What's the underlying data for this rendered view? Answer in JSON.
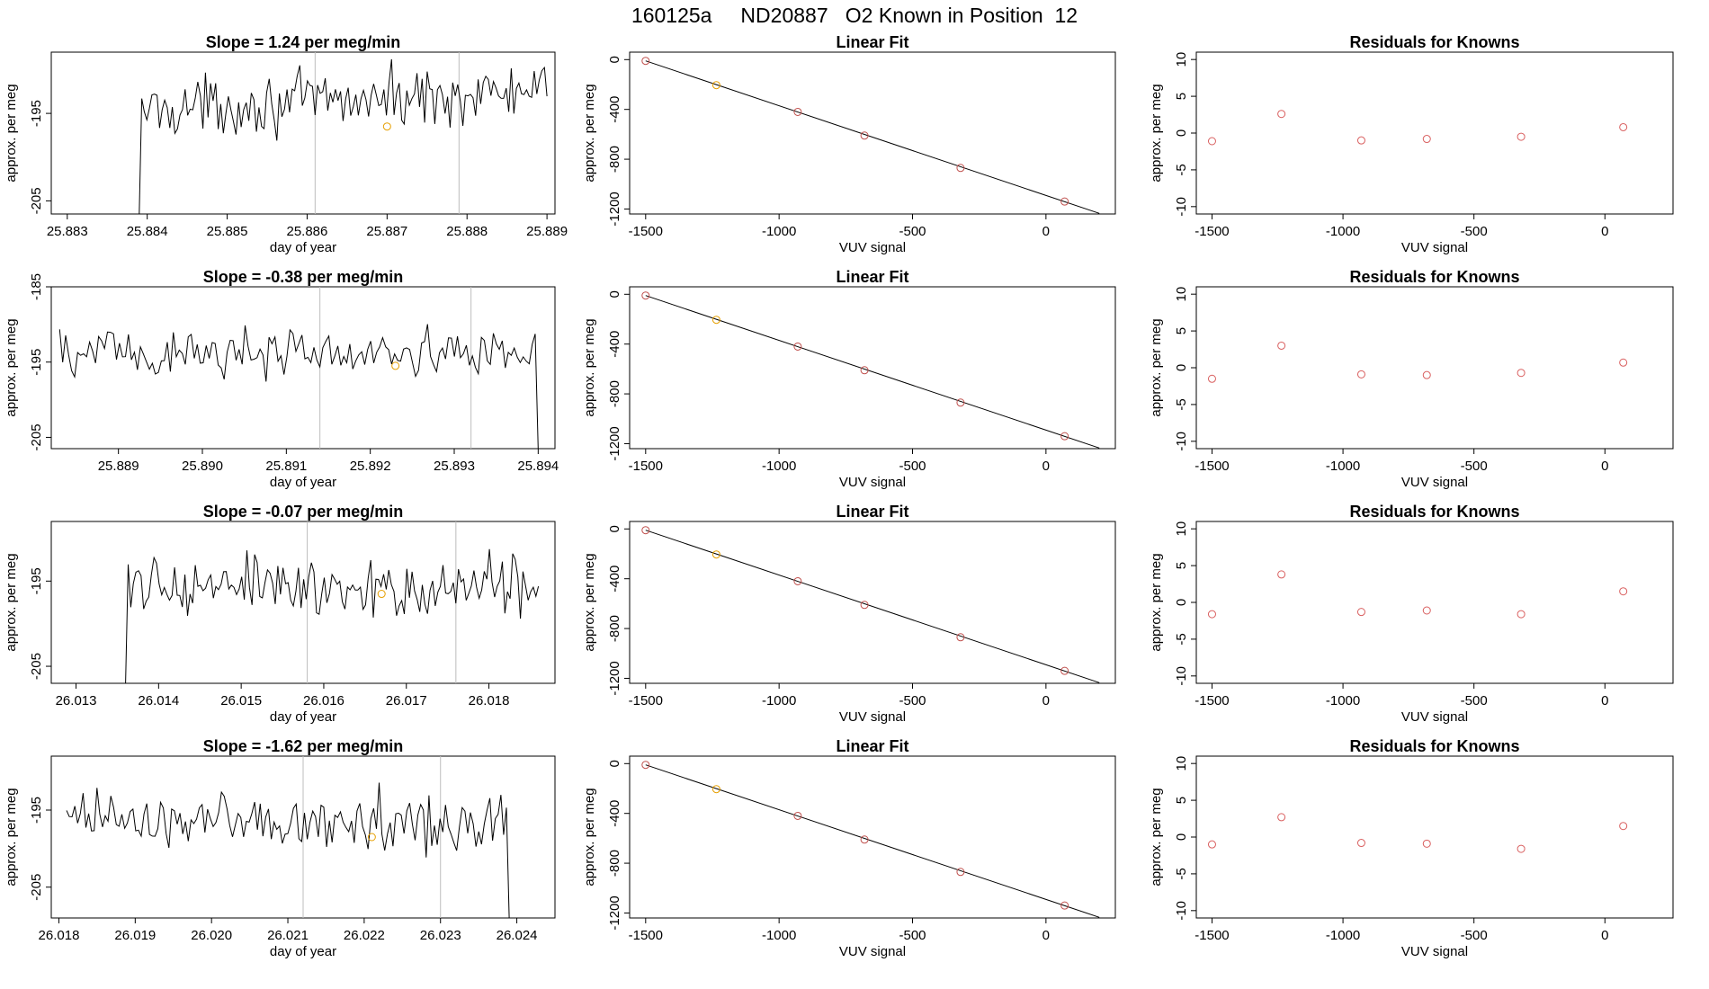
{
  "page_title": "160125a     ND20887   O2 Known in Position  12",
  "colors": {
    "line": "#000000",
    "residual_point": "#d95f5f",
    "fit_point": "#c0504d",
    "highlight_point": "#e69f00",
    "vertical_marker": "#bdbdbd",
    "axis": "#000000"
  },
  "chart_data": [
    {
      "type": "line",
      "title": "Slope =  1.24  per meg/min",
      "xlabel": "day of year",
      "ylabel": "approx. per meg",
      "xlim": [
        25.8828,
        25.8891
      ],
      "ylim": [
        -206.5,
        -188
      ],
      "xticks": [
        25.883,
        25.884,
        25.885,
        25.886,
        25.887,
        25.888,
        25.889
      ],
      "xtick_labels": [
        "25.883",
        "25.884",
        "25.885",
        "25.886",
        "25.887",
        "25.888",
        "25.889"
      ],
      "yticks": [
        -205,
        -195
      ],
      "ytick_labels": [
        "-205",
        "-195"
      ],
      "x_start": 25.8839,
      "x_end": 25.889,
      "baseline": -193.5,
      "trend": 2.0,
      "amplitude": 2.3,
      "start_value": -206.5,
      "vertical_lines": [
        25.8861,
        25.8879
      ],
      "highlight_point": {
        "x": 25.887,
        "y": -196.5
      }
    },
    {
      "type": "scatter-with-fit",
      "title": "Linear Fit",
      "xlabel": "VUV signal",
      "ylabel": "approx. per meg",
      "xlim": [
        -1560,
        260
      ],
      "ylim": [
        -1240,
        60
      ],
      "xticks": [
        -1500,
        -1000,
        -500,
        0
      ],
      "xtick_labels": [
        "-1500",
        "-1000",
        "-500",
        "0"
      ],
      "yticks": [
        0,
        -400,
        -800,
        -1200
      ],
      "ytick_labels": [
        "0",
        "-400",
        "-800",
        "-1200"
      ],
      "points": [
        {
          "x": -1500,
          "y": -10
        },
        {
          "x": -1235,
          "y": -205
        },
        {
          "x": -930,
          "y": -420
        },
        {
          "x": -680,
          "y": -610
        },
        {
          "x": -320,
          "y": -870
        },
        {
          "x": 70,
          "y": -1140
        }
      ],
      "highlight_index": 1,
      "fit_line": {
        "x": [
          -1500,
          200
        ],
        "y": [
          -10,
          -1235
        ]
      }
    },
    {
      "type": "scatter",
      "title": "Residuals for Knowns",
      "xlabel": "VUV signal",
      "ylabel": "approx. per meg",
      "xlim": [
        -1560,
        260
      ],
      "ylim": [
        -11,
        11
      ],
      "xticks": [
        -1500,
        -1000,
        -500,
        0
      ],
      "xtick_labels": [
        "-1500",
        "-1000",
        "-500",
        "0"
      ],
      "yticks": [
        -10,
        -5,
        0,
        5,
        10
      ],
      "ytick_labels": [
        "-10",
        "-5",
        "0",
        "5",
        "10"
      ],
      "points": [
        {
          "x": -1500,
          "y": -1.1
        },
        {
          "x": -1235,
          "y": 2.6
        },
        {
          "x": -930,
          "y": -1.0
        },
        {
          "x": -680,
          "y": -0.8
        },
        {
          "x": -320,
          "y": -0.5
        },
        {
          "x": 70,
          "y": 0.8
        }
      ]
    },
    {
      "type": "line",
      "title": "Slope =  -0.38  per meg/min",
      "xlabel": "day of year",
      "ylabel": "approx. per meg",
      "xlim": [
        25.8882,
        25.8942
      ],
      "ylim": [
        -206.5,
        -185
      ],
      "xticks": [
        25.889,
        25.89,
        25.891,
        25.892,
        25.893,
        25.894
      ],
      "xtick_labels": [
        "25.889",
        "25.890",
        "25.891",
        "25.892",
        "25.893",
        "25.894"
      ],
      "yticks": [
        -205,
        -195,
        -185
      ],
      "ytick_labels": [
        "-205",
        "-195",
        "-185"
      ],
      "x_start": 25.8883,
      "x_end": 25.894,
      "baseline": -193.8,
      "trend": -0.4,
      "amplitude": 2.5,
      "end_value": -206.5,
      "vertical_lines": [
        25.8914,
        25.8932
      ],
      "highlight_point": {
        "x": 25.8923,
        "y": -195.5
      }
    },
    {
      "type": "scatter-with-fit",
      "title": "Linear Fit",
      "xlabel": "VUV signal",
      "ylabel": "approx. per meg",
      "xlim": [
        -1560,
        260
      ],
      "ylim": [
        -1240,
        60
      ],
      "xticks": [
        -1500,
        -1000,
        -500,
        0
      ],
      "xtick_labels": [
        "-1500",
        "-1000",
        "-500",
        "0"
      ],
      "yticks": [
        0,
        -400,
        -800,
        -1200
      ],
      "ytick_labels": [
        "0",
        "-400",
        "-800",
        "-1200"
      ],
      "points": [
        {
          "x": -1500,
          "y": -10
        },
        {
          "x": -1235,
          "y": -205
        },
        {
          "x": -930,
          "y": -420
        },
        {
          "x": -680,
          "y": -610
        },
        {
          "x": -320,
          "y": -870
        },
        {
          "x": 70,
          "y": -1140
        }
      ],
      "highlight_index": 1,
      "fit_line": {
        "x": [
          -1500,
          200
        ],
        "y": [
          -10,
          -1235
        ]
      }
    },
    {
      "type": "scatter",
      "title": "Residuals for Knowns",
      "xlabel": "VUV signal",
      "ylabel": "approx. per meg",
      "xlim": [
        -1560,
        260
      ],
      "ylim": [
        -11,
        11
      ],
      "xticks": [
        -1500,
        -1000,
        -500,
        0
      ],
      "xtick_labels": [
        "-1500",
        "-1000",
        "-500",
        "0"
      ],
      "yticks": [
        -10,
        -5,
        0,
        5,
        10
      ],
      "ytick_labels": [
        "-10",
        "-5",
        "0",
        "5",
        "10"
      ],
      "points": [
        {
          "x": -1500,
          "y": -1.5
        },
        {
          "x": -1235,
          "y": 3.0
        },
        {
          "x": -930,
          "y": -0.9
        },
        {
          "x": -680,
          "y": -1.0
        },
        {
          "x": -320,
          "y": -0.7
        },
        {
          "x": 70,
          "y": 0.7
        }
      ]
    },
    {
      "type": "line",
      "title": "Slope =  -0.07  per meg/min",
      "xlabel": "day of year",
      "ylabel": "approx. per meg",
      "xlim": [
        26.0127,
        26.0188
      ],
      "ylim": [
        -207,
        -188
      ],
      "xticks": [
        26.013,
        26.014,
        26.015,
        26.016,
        26.017,
        26.018
      ],
      "xtick_labels": [
        "26.013",
        "26.014",
        "26.015",
        "26.016",
        "26.017",
        "26.018"
      ],
      "yticks": [
        -205,
        -195
      ],
      "ytick_labels": [
        "-205",
        "-195"
      ],
      "x_start": 26.0136,
      "x_end": 26.0186,
      "baseline": -195.8,
      "trend": 0.0,
      "amplitude": 2.4,
      "start_value": -207,
      "vertical_lines": [
        26.0158,
        26.0176
      ],
      "highlight_point": {
        "x": 26.0167,
        "y": -196.5
      }
    },
    {
      "type": "scatter-with-fit",
      "title": "Linear Fit",
      "xlabel": "VUV signal",
      "ylabel": "approx. per meg",
      "xlim": [
        -1560,
        260
      ],
      "ylim": [
        -1240,
        60
      ],
      "xticks": [
        -1500,
        -1000,
        -500,
        0
      ],
      "xtick_labels": [
        "-1500",
        "-1000",
        "-500",
        "0"
      ],
      "yticks": [
        0,
        -400,
        -800,
        -1200
      ],
      "ytick_labels": [
        "0",
        "-400",
        "-800",
        "-1200"
      ],
      "points": [
        {
          "x": -1500,
          "y": -10
        },
        {
          "x": -1235,
          "y": -205
        },
        {
          "x": -930,
          "y": -420
        },
        {
          "x": -680,
          "y": -610
        },
        {
          "x": -320,
          "y": -870
        },
        {
          "x": 70,
          "y": -1140
        }
      ],
      "highlight_index": 1,
      "fit_line": {
        "x": [
          -1500,
          200
        ],
        "y": [
          -10,
          -1235
        ]
      }
    },
    {
      "type": "scatter",
      "title": "Residuals for Knowns",
      "xlabel": "VUV signal",
      "ylabel": "approx. per meg",
      "xlim": [
        -1560,
        260
      ],
      "ylim": [
        -11,
        11
      ],
      "xticks": [
        -1500,
        -1000,
        -500,
        0
      ],
      "xtick_labels": [
        "-1500",
        "-1000",
        "-500",
        "0"
      ],
      "yticks": [
        -10,
        -5,
        0,
        5,
        10
      ],
      "ytick_labels": [
        "-10",
        "-5",
        "0",
        "5",
        "10"
      ],
      "points": [
        {
          "x": -1500,
          "y": -1.6
        },
        {
          "x": -1235,
          "y": 3.8
        },
        {
          "x": -930,
          "y": -1.3
        },
        {
          "x": -680,
          "y": -1.1
        },
        {
          "x": -320,
          "y": -1.6
        },
        {
          "x": 70,
          "y": 1.5
        }
      ]
    },
    {
      "type": "line",
      "title": "Slope =  -1.62  per meg/min",
      "xlabel": "day of year",
      "ylabel": "approx. per meg",
      "xlim": [
        26.0179,
        26.0245
      ],
      "ylim": [
        -209,
        -188
      ],
      "xticks": [
        26.018,
        26.019,
        26.02,
        26.021,
        26.022,
        26.023,
        26.024
      ],
      "xtick_labels": [
        "26.018",
        "26.019",
        "26.020",
        "26.021",
        "26.022",
        "26.023",
        "26.024"
      ],
      "yticks": [
        -205,
        -195
      ],
      "ytick_labels": [
        "-205",
        "-195"
      ],
      "x_start": 26.0181,
      "x_end": 26.0239,
      "baseline": -196.5,
      "trend": -1.0,
      "amplitude": 2.6,
      "end_value": -209,
      "vertical_lines": [
        26.0212,
        26.023
      ],
      "highlight_point": {
        "x": 26.0221,
        "y": -198.5
      }
    },
    {
      "type": "scatter-with-fit",
      "title": "Linear Fit",
      "xlabel": "VUV signal",
      "ylabel": "approx. per meg",
      "xlim": [
        -1560,
        260
      ],
      "ylim": [
        -1240,
        60
      ],
      "xticks": [
        -1500,
        -1000,
        -500,
        0
      ],
      "xtick_labels": [
        "-1500",
        "-1000",
        "-500",
        "0"
      ],
      "yticks": [
        0,
        -400,
        -800,
        -1200
      ],
      "ytick_labels": [
        "0",
        "-400",
        "-800",
        "-1200"
      ],
      "points": [
        {
          "x": -1500,
          "y": -10
        },
        {
          "x": -1235,
          "y": -205
        },
        {
          "x": -930,
          "y": -420
        },
        {
          "x": -680,
          "y": -610
        },
        {
          "x": -320,
          "y": -870
        },
        {
          "x": 70,
          "y": -1140
        }
      ],
      "highlight_index": 1,
      "fit_line": {
        "x": [
          -1500,
          200
        ],
        "y": [
          -10,
          -1235
        ]
      }
    },
    {
      "type": "scatter",
      "title": "Residuals for Knowns",
      "xlabel": "VUV signal",
      "ylabel": "approx. per meg",
      "xlim": [
        -1560,
        260
      ],
      "ylim": [
        -11,
        11
      ],
      "xticks": [
        -1500,
        -1000,
        -500,
        0
      ],
      "xtick_labels": [
        "-1500",
        "-1000",
        "-500",
        "0"
      ],
      "yticks": [
        -10,
        -5,
        0,
        5,
        10
      ],
      "ytick_labels": [
        "-10",
        "-5",
        "0",
        "5",
        "10"
      ],
      "points": [
        {
          "x": -1500,
          "y": -1.0
        },
        {
          "x": -1235,
          "y": 2.7
        },
        {
          "x": -930,
          "y": -0.8
        },
        {
          "x": -680,
          "y": -0.9
        },
        {
          "x": -320,
          "y": -1.6
        },
        {
          "x": 70,
          "y": 1.5
        }
      ]
    }
  ]
}
